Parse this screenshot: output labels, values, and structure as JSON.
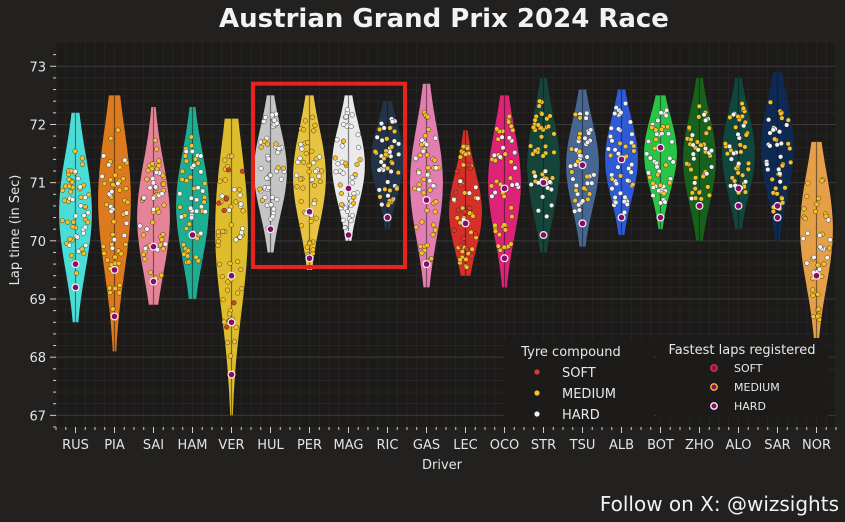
{
  "chart_data": {
    "type": "violin-swarm",
    "title": "Austrian Grand Prix 2024 Race",
    "xlabel": "Driver",
    "ylabel": "Lap time (in Sec)",
    "ylim": [
      66.8,
      73.4
    ],
    "yticks": [
      67,
      68,
      69,
      70,
      71,
      72,
      73
    ],
    "grid": true,
    "highlight_categories": [
      "HUL",
      "PER",
      "MAG",
      "RIC"
    ],
    "highlight_color": "#e8231b",
    "compound_colors": {
      "SOFT": "#d93a2b",
      "MEDIUM": "#f5c12a",
      "HARD": "#f2f2f2"
    },
    "fastest_marker_color": "#8a0a6a",
    "legend_compound": {
      "title": "Tyre compound",
      "items": [
        "SOFT",
        "MEDIUM",
        "HARD"
      ],
      "placement": "lower-right"
    },
    "legend_fastest": {
      "title": "Fastest laps registered",
      "items": [
        "SOFT",
        "MEDIUM",
        "HARD"
      ],
      "placement": "lower-right"
    },
    "drivers": [
      {
        "name": "RUS",
        "color": "#4de8e0",
        "min": 68.6,
        "max": 72.2,
        "median": 70.5,
        "fastest": [
          69.2,
          69.6
        ],
        "compounds": [
          [
            "MEDIUM",
            69.4,
            71.6,
            38
          ],
          [
            "HARD",
            69.8,
            71.2,
            18
          ]
        ]
      },
      {
        "name": "PIA",
        "color": "#e8801e",
        "min": 68.1,
        "max": 72.5,
        "median": 70.7,
        "fastest": [
          68.7,
          69.5
        ],
        "compounds": [
          [
            "MEDIUM",
            68.8,
            72.0,
            40
          ],
          [
            "HARD",
            69.8,
            71.5,
            16
          ]
        ]
      },
      {
        "name": "SAI",
        "color": "#f08aa0",
        "min": 68.9,
        "max": 72.3,
        "median": 70.4,
        "fastest": [
          69.3,
          69.9
        ],
        "compounds": [
          [
            "MEDIUM",
            69.3,
            71.8,
            40
          ],
          [
            "HARD",
            69.8,
            71.2,
            16
          ]
        ]
      },
      {
        "name": "HAM",
        "color": "#1fb59a",
        "min": 69.0,
        "max": 72.3,
        "median": 70.6,
        "fastest": [
          70.1
        ],
        "compounds": [
          [
            "MEDIUM",
            69.6,
            71.8,
            34
          ],
          [
            "HARD",
            69.9,
            71.6,
            22
          ]
        ]
      },
      {
        "name": "VER",
        "color": "#e8c62e",
        "min": 67.0,
        "max": 72.1,
        "median": 70.2,
        "fastest": [
          67.7,
          68.6,
          69.4
        ],
        "compounds": [
          [
            "MEDIUM",
            68.0,
            71.6,
            42
          ],
          [
            "HARD",
            69.9,
            71.0,
            10
          ],
          [
            "SOFT",
            67.9,
            71.6,
            8
          ]
        ]
      },
      {
        "name": "HUL",
        "color": "#cfcfcf",
        "min": 69.8,
        "max": 72.5,
        "median": 71.2,
        "fastest": [
          70.2
        ],
        "compounds": [
          [
            "HARD",
            70.2,
            72.2,
            44
          ],
          [
            "MEDIUM",
            70.6,
            71.8,
            8
          ]
        ]
      },
      {
        "name": "PER",
        "color": "#f2cc44",
        "min": 69.5,
        "max": 72.5,
        "median": 71.1,
        "fastest": [
          69.7,
          70.5
        ],
        "compounds": [
          [
            "MEDIUM",
            69.7,
            72.2,
            38
          ],
          [
            "HARD",
            70.4,
            71.8,
            14
          ]
        ]
      },
      {
        "name": "MAG",
        "color": "#f5f5f5",
        "min": 70.0,
        "max": 72.5,
        "median": 71.3,
        "fastest": [
          70.1,
          70.9
        ],
        "compounds": [
          [
            "HARD",
            70.2,
            72.3,
            38
          ],
          [
            "MEDIUM",
            70.6,
            71.8,
            12
          ]
        ]
      },
      {
        "name": "RIC",
        "color": "#24354a",
        "min": 70.2,
        "max": 72.4,
        "median": 71.4,
        "fastest": [
          70.4
        ],
        "compounds": [
          [
            "HARD",
            70.6,
            72.1,
            30
          ],
          [
            "MEDIUM",
            70.6,
            72.0,
            22
          ]
        ]
      },
      {
        "name": "GAS",
        "color": "#ee84b8",
        "min": 69.2,
        "max": 72.7,
        "median": 71.0,
        "fastest": [
          69.6,
          70.7
        ],
        "compounds": [
          [
            "MEDIUM",
            69.6,
            72.4,
            40
          ],
          [
            "HARD",
            70.6,
            71.8,
            14
          ]
        ]
      },
      {
        "name": "LEC",
        "color": "#e0302a",
        "min": 69.4,
        "max": 71.9,
        "median": 70.5,
        "fastest": [
          70.3
        ],
        "compounds": [
          [
            "MEDIUM",
            69.5,
            71.7,
            36
          ],
          [
            "SOFT",
            69.6,
            71.4,
            18
          ],
          [
            "HARD",
            70.1,
            71.1,
            6
          ]
        ]
      },
      {
        "name": "OCO",
        "color": "#e8247a",
        "min": 69.2,
        "max": 72.5,
        "median": 71.0,
        "fastest": [
          69.7,
          70.9
        ],
        "compounds": [
          [
            "MEDIUM",
            69.8,
            72.3,
            40
          ],
          [
            "HARD",
            70.6,
            71.8,
            14
          ]
        ]
      },
      {
        "name": "STR",
        "color": "#15473b",
        "min": 69.8,
        "max": 72.8,
        "median": 71.3,
        "fastest": [
          70.1,
          71.0
        ],
        "compounds": [
          [
            "MEDIUM",
            70.9,
            72.4,
            36
          ],
          [
            "HARD",
            70.3,
            71.2,
            14
          ]
        ]
      },
      {
        "name": "TSU",
        "color": "#4a6a9a",
        "min": 69.9,
        "max": 72.6,
        "median": 71.3,
        "fastest": [
          70.3,
          71.3
        ],
        "compounds": [
          [
            "HARD",
            70.5,
            72.2,
            34
          ],
          [
            "MEDIUM",
            70.4,
            72.2,
            16
          ]
        ]
      },
      {
        "name": "ALB",
        "color": "#2f5ee0",
        "min": 70.1,
        "max": 72.6,
        "median": 71.4,
        "fastest": [
          70.4,
          71.4
        ],
        "compounds": [
          [
            "HARD",
            70.4,
            72.4,
            40
          ],
          [
            "MEDIUM",
            70.8,
            71.8,
            10
          ]
        ]
      },
      {
        "name": "BOT",
        "color": "#28d04a",
        "min": 70.2,
        "max": 72.5,
        "median": 71.5,
        "fastest": [
          70.4,
          71.6
        ],
        "compounds": [
          [
            "HARD",
            70.6,
            72.3,
            36
          ],
          [
            "MEDIUM",
            70.6,
            72.0,
            14
          ]
        ]
      },
      {
        "name": "ZHO",
        "color": "#16651c",
        "min": 70.0,
        "max": 72.8,
        "median": 71.4,
        "fastest": [
          70.6
        ],
        "compounds": [
          [
            "MEDIUM",
            70.7,
            72.4,
            34
          ],
          [
            "HARD",
            70.7,
            72.2,
            16
          ]
        ]
      },
      {
        "name": "ALO",
        "color": "#0f4a40",
        "min": 70.2,
        "max": 72.8,
        "median": 71.5,
        "fastest": [
          70.6,
          70.9
        ],
        "compounds": [
          [
            "MEDIUM",
            70.8,
            72.4,
            34
          ],
          [
            "HARD",
            70.8,
            72.2,
            14
          ]
        ]
      },
      {
        "name": "SAR",
        "color": "#0e2b55",
        "min": 70.0,
        "max": 72.9,
        "median": 71.6,
        "fastest": [
          70.4,
          70.6
        ],
        "compounds": [
          [
            "MEDIUM",
            70.5,
            72.4,
            30
          ],
          [
            "HARD",
            71.0,
            72.2,
            18
          ]
        ]
      },
      {
        "name": "NOR",
        "color": "#f0a84a",
        "min": 68.2,
        "max": 71.7,
        "median": 70.2,
        "fastest": [
          69.4
        ],
        "compounds": [
          [
            "MEDIUM",
            68.4,
            71.1,
            30
          ],
          [
            "HARD",
            69.4,
            70.6,
            16
          ]
        ]
      }
    ]
  },
  "footer": {
    "credit": "Follow on X: @wizsights"
  }
}
